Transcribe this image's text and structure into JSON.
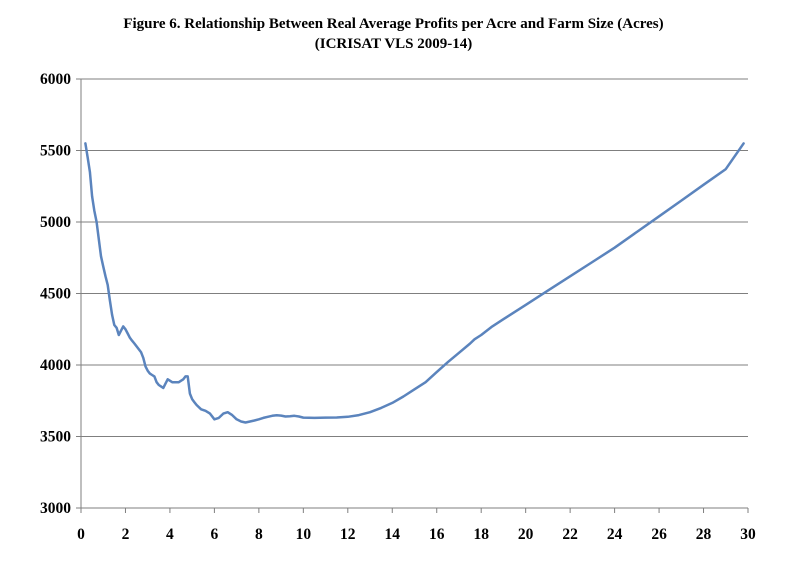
{
  "chart_data": {
    "type": "line",
    "title": "Figure 6. Relationship Between Real Average Profits per Acre and Farm Size (Acres)",
    "subtitle": "(ICRISAT VLS 2009-14)",
    "xlabel": "",
    "ylabel": "",
    "xlim": [
      0,
      30
    ],
    "ylim": [
      3000,
      6000
    ],
    "xticks": [
      0,
      2,
      4,
      6,
      8,
      10,
      12,
      14,
      16,
      18,
      20,
      22,
      24,
      26,
      28,
      30
    ],
    "yticks": [
      3000,
      3500,
      4000,
      4500,
      5000,
      5500,
      6000
    ],
    "grid": "horizontal",
    "line_color": "#5b84bd",
    "series": [
      {
        "x": [
          0.2,
          0.3,
          0.4,
          0.5,
          0.6,
          0.7,
          0.8,
          0.9,
          1.0,
          1.1,
          1.2,
          1.3,
          1.4,
          1.5,
          1.6,
          1.7,
          1.8,
          1.9,
          2.0,
          2.1,
          2.2,
          2.3,
          2.4,
          2.5,
          2.6,
          2.7,
          2.8,
          2.9,
          3.0,
          3.1,
          3.2,
          3.3,
          3.4,
          3.5,
          3.6,
          3.7,
          3.8,
          3.9,
          4.0,
          4.1,
          4.2,
          4.3,
          4.4,
          4.5,
          4.6,
          4.7,
          4.8,
          4.9,
          5.0,
          5.1,
          5.2,
          5.4,
          5.6,
          5.8,
          6.0,
          6.2,
          6.4,
          6.6,
          6.8,
          7.0,
          7.2,
          7.4,
          7.6,
          7.8,
          8.0,
          8.2,
          8.4,
          8.6,
          8.8,
          9.0,
          9.2,
          9.4,
          9.6,
          9.8,
          10.0,
          10.5,
          11.0,
          11.5,
          12.0,
          12.5,
          13.0,
          13.5,
          14.0,
          14.5,
          15.0,
          15.5,
          16.0,
          16.5,
          17.0,
          17.5,
          17.7,
          18.0,
          18.5,
          19.0,
          20.0,
          21.0,
          22.0,
          23.0,
          24.0,
          25.0,
          26.0,
          27.0,
          28.0,
          29.0,
          29.8
        ],
        "y": [
          5550,
          5450,
          5350,
          5180,
          5080,
          5000,
          4880,
          4760,
          4690,
          4620,
          4560,
          4450,
          4350,
          4280,
          4260,
          4210,
          4240,
          4270,
          4250,
          4220,
          4190,
          4170,
          4150,
          4130,
          4110,
          4090,
          4050,
          3990,
          3960,
          3940,
          3930,
          3920,
          3880,
          3860,
          3850,
          3840,
          3870,
          3900,
          3890,
          3880,
          3880,
          3880,
          3880,
          3890,
          3900,
          3920,
          3920,
          3800,
          3760,
          3740,
          3720,
          3690,
          3680,
          3660,
          3620,
          3630,
          3660,
          3670,
          3650,
          3620,
          3605,
          3598,
          3605,
          3612,
          3620,
          3630,
          3638,
          3645,
          3648,
          3646,
          3640,
          3642,
          3645,
          3640,
          3632,
          3630,
          3632,
          3633,
          3638,
          3650,
          3670,
          3700,
          3735,
          3780,
          3830,
          3880,
          3950,
          4020,
          4085,
          4150,
          4180,
          4210,
          4270,
          4320,
          4420,
          4520,
          4620,
          4720,
          4820,
          4930,
          5040,
          5150,
          5260,
          5370,
          5550
        ]
      }
    ]
  }
}
